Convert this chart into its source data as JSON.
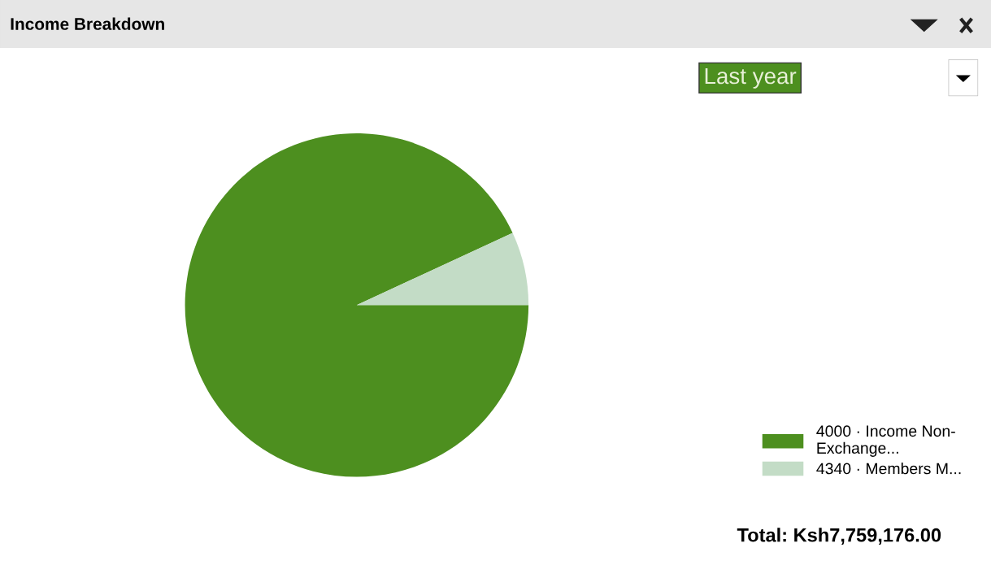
{
  "chart_data": {
    "type": "pie",
    "title": "Income Breakdown",
    "categories": [
      "4000 · Income Non-Exchange...",
      "4340 · Members M..."
    ],
    "values": [
      93.1,
      6.9
    ],
    "colors": [
      "#4d8f1f",
      "#c3dcc6"
    ],
    "legend": "bottom right",
    "annotations": [
      "Last year",
      "Total: Ksh7,759,176.00"
    ]
  }
}
